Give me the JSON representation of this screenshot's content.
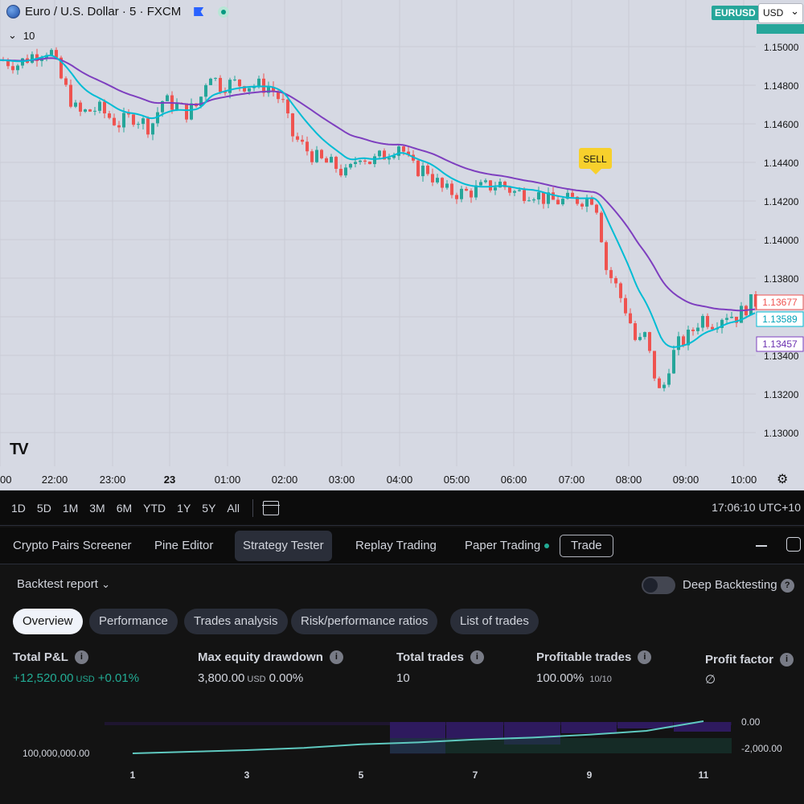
{
  "header": {
    "title": "Euro / U.S. Dollar · 5 · FXCM",
    "indicator_count": "10",
    "symbol_badge": "EURUSD",
    "currency": "USD"
  },
  "chart": {
    "price_ticks": [
      "1.15000",
      "1.14800",
      "1.14600",
      "1.14400",
      "1.14200",
      "1.14000",
      "1.13800",
      "1.13600",
      "1.13400",
      "1.13200",
      "1.13000"
    ],
    "time_ticks": [
      "00",
      "22:00",
      "23:00",
      "23",
      "01:00",
      "02:00",
      "03:00",
      "04:00",
      "05:00",
      "06:00",
      "07:00",
      "08:00",
      "09:00",
      "10:00"
    ],
    "signal_label": "SELL",
    "last_price": "1.13677",
    "ema_fast_value": "1.13589",
    "ema_slow_value": "1.13457",
    "colors": {
      "up": "#26a69a",
      "down": "#ef5350",
      "ema_fast": "#00bcd4",
      "ema_slow": "#7e3fbf",
      "signal": "#f7d02c"
    }
  },
  "timeframes": [
    "1D",
    "5D",
    "1M",
    "3M",
    "6M",
    "YTD",
    "1Y",
    "5Y",
    "All"
  ],
  "clock": "17:06:10 UTC+10",
  "bottom_tabs": {
    "screener": "Crypto Pairs Screener",
    "pine": "Pine Editor",
    "strategy": "Strategy Tester",
    "replay": "Replay Trading",
    "paper": "Paper Trading",
    "trade": "Trade"
  },
  "report": {
    "title": "Backtest report",
    "deep_label": "Deep Backtesting",
    "tabs": [
      "Overview",
      "Performance",
      "Trades analysis",
      "Risk/performance ratios",
      "List of trades"
    ],
    "metrics": {
      "total_pnl_label": "Total P&L",
      "total_pnl_value": "+12,520.00",
      "total_pnl_unit": "USD",
      "total_pnl_pct": "+0.01%",
      "drawdown_label": "Max equity drawdown",
      "drawdown_value": "3,800.00",
      "drawdown_unit": "USD",
      "drawdown_pct": "0.00%",
      "trades_label": "Total trades",
      "trades_value": "10",
      "profitable_label": "Profitable trades",
      "profitable_value": "100.00%",
      "profitable_sub": "10/10",
      "pf_label": "Profit factor",
      "pf_value": "∅"
    }
  },
  "chart_data": {
    "type": "line",
    "x": [
      1,
      2,
      3,
      4,
      5,
      6,
      7,
      8,
      9,
      10,
      11
    ],
    "x_ticks": [
      "1",
      "3",
      "5",
      "7",
      "9",
      "11"
    ],
    "left_axis_label": "100,000,000.00",
    "right_axis_labels": [
      "0.00",
      "-2,000.00"
    ],
    "series": [
      {
        "values": [
          0.0,
          0.05,
          0.1,
          0.17,
          0.28,
          0.34,
          0.43,
          0.49,
          0.58,
          0.7,
          1.0
        ]
      }
    ]
  }
}
